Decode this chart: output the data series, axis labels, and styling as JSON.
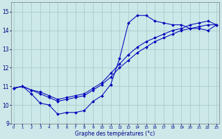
{
  "xlabel": "Graphe des températures (°c)",
  "background_color": "#cce8e8",
  "grid_color": "#aacccc",
  "line_color": "#0000bb",
  "x_ticks": [
    0,
    1,
    2,
    3,
    4,
    5,
    6,
    7,
    8,
    9,
    10,
    11,
    12,
    13,
    14,
    15,
    16,
    17,
    18,
    19,
    20,
    21,
    22,
    23
  ],
  "ylim": [
    9.0,
    15.5
  ],
  "xlim": [
    -0.3,
    23.3
  ],
  "yticks": [
    9,
    10,
    11,
    12,
    13,
    14,
    15
  ],
  "series1_x": [
    0,
    1,
    2,
    3,
    4,
    5,
    6,
    7,
    8,
    9,
    10,
    11,
    12,
    13,
    14,
    15,
    16,
    17,
    18,
    19,
    20,
    21,
    22,
    23
  ],
  "series1_y": [
    10.9,
    11.0,
    10.6,
    10.1,
    10.0,
    9.5,
    9.6,
    9.6,
    9.7,
    10.2,
    10.5,
    11.1,
    12.5,
    14.4,
    14.8,
    14.8,
    14.5,
    14.4,
    14.3,
    14.3,
    14.1,
    14.1,
    14.0,
    14.3
  ],
  "series2_x": [
    0,
    1,
    2,
    3,
    4,
    5,
    6,
    7,
    8,
    9,
    10,
    11,
    12,
    13,
    14,
    15,
    16,
    17,
    18,
    19,
    20,
    21,
    22,
    23
  ],
  "series2_y": [
    10.9,
    11.0,
    10.8,
    10.6,
    10.4,
    10.2,
    10.3,
    10.4,
    10.5,
    10.8,
    11.1,
    11.5,
    12.0,
    12.4,
    12.8,
    13.1,
    13.4,
    13.6,
    13.8,
    14.0,
    14.1,
    14.2,
    14.3,
    14.3
  ],
  "series3_x": [
    0,
    1,
    2,
    3,
    4,
    5,
    6,
    7,
    8,
    9,
    10,
    11,
    12,
    13,
    14,
    15,
    16,
    17,
    18,
    19,
    20,
    21,
    22,
    23
  ],
  "series3_y": [
    10.9,
    11.0,
    10.8,
    10.7,
    10.5,
    10.3,
    10.4,
    10.5,
    10.6,
    10.9,
    11.2,
    11.7,
    12.2,
    12.7,
    13.1,
    13.4,
    13.6,
    13.8,
    14.0,
    14.1,
    14.3,
    14.4,
    14.5,
    14.3
  ]
}
